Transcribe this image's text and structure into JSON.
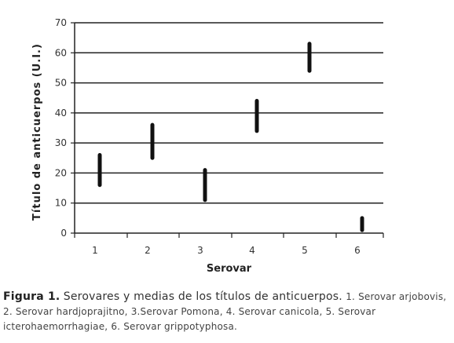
{
  "chart_data": {
    "type": "range",
    "xlabel": "Serovar",
    "ylabel": "Título de anticuerpos (U.I.)",
    "ylim": [
      0,
      70
    ],
    "yticks": [
      0,
      10,
      20,
      30,
      40,
      50,
      60,
      70
    ],
    "categories": [
      "1",
      "2",
      "3",
      "4",
      "5",
      "6"
    ],
    "ranges": [
      {
        "x": "1",
        "low": 16,
        "high": 26
      },
      {
        "x": "2",
        "low": 25,
        "high": 36
      },
      {
        "x": "3",
        "low": 11,
        "high": 21
      },
      {
        "x": "4",
        "low": 34,
        "high": 44
      },
      {
        "x": "5",
        "low": 54,
        "high": 63
      },
      {
        "x": "6",
        "low": 1,
        "high": 5
      }
    ],
    "grid": true,
    "colors": {
      "bar": "#111111",
      "grid": "#222222"
    }
  },
  "caption": {
    "label": "Figura 1.",
    "title": "Serovares y medias de los títulos de anticuerpos.",
    "description": "1. Serovar arjobovis, 2. Serovar hardjoprajitno, 3.Serovar Pomona, 4. Serovar canicola, 5. Serovar icterohaemorrhagiae, 6. Serovar grippotyphosa."
  }
}
